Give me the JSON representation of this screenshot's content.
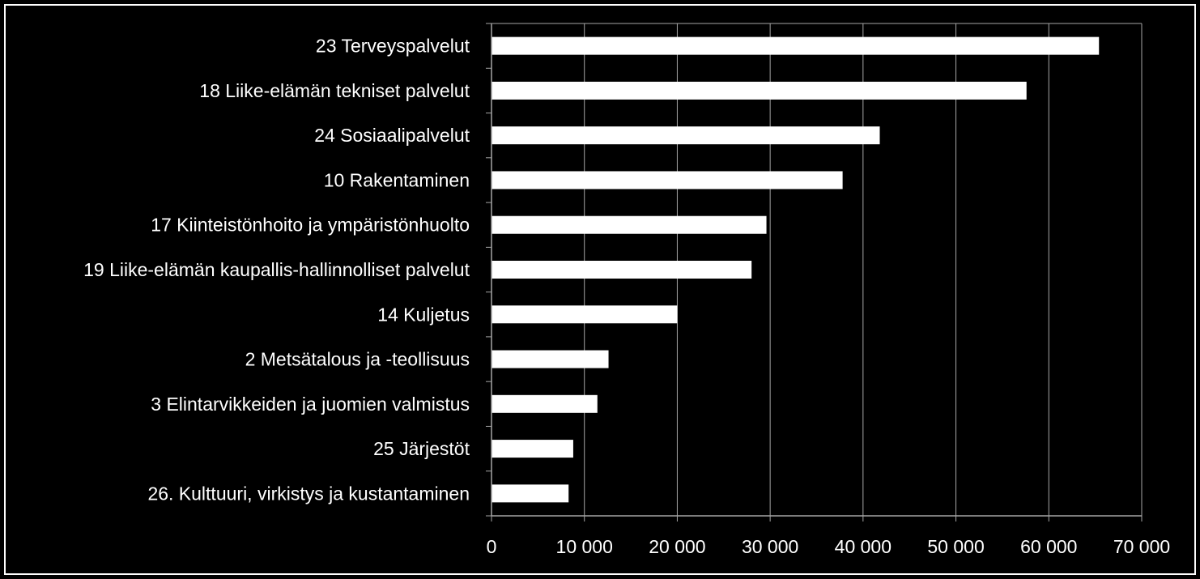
{
  "chart_data": {
    "type": "bar",
    "orientation": "horizontal",
    "title": "",
    "xlabel": "",
    "ylabel": "",
    "categories": [
      "23 Terveyspalvelut",
      "18 Liike-elämän tekniset palvelut",
      "24 Sosiaalipalvelut",
      "10 Rakentaminen",
      "17 Kiinteistönhoito ja ympäristönhuolto",
      "19 Liike-elämän kaupallis-hallinnolliset palvelut",
      "14 Kuljetus ",
      "2 Metsätalous ja -teollisuus",
      "3 Elintarvikkeiden ja juomien valmistus ",
      "25 Järjestöt",
      "26. Kulttuuri, virkistys ja kustantaminen"
    ],
    "values": [
      65400,
      57600,
      41800,
      37800,
      29600,
      28000,
      20000,
      12600,
      11400,
      8800,
      8300
    ],
    "xlim": [
      0,
      70000
    ],
    "xticks": [
      0,
      10000,
      20000,
      30000,
      40000,
      50000,
      60000,
      70000
    ],
    "xtick_labels": [
      "0",
      "10 000",
      "20 000",
      "30 000",
      "40 000",
      "50 000",
      "60 000",
      "70 000"
    ],
    "grid": "vertical",
    "legend": "none",
    "colors": {
      "background": "#000000",
      "bar": "#ffffff",
      "text": "#ffffff",
      "grid": "#a6a6a6",
      "axis": "#a6a6a6",
      "border": "#ffffff"
    }
  }
}
